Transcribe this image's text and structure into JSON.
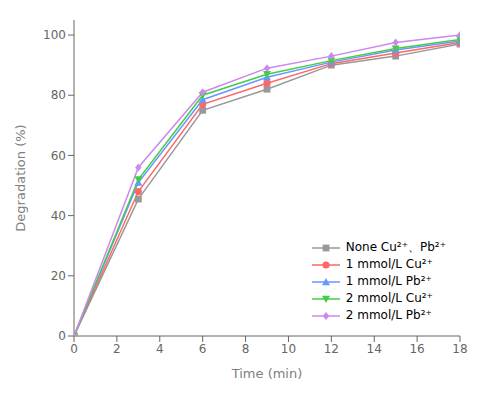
{
  "chart_data": {
    "type": "line",
    "xlabel": "Time (min)",
    "ylabel": "Degradation (%)",
    "x": [
      0,
      3,
      6,
      9,
      12,
      15,
      18
    ],
    "xlim": [
      0,
      18
    ],
    "ylim": [
      0,
      105
    ],
    "xticks": [
      0,
      2,
      4,
      6,
      8,
      10,
      12,
      14,
      16,
      18
    ],
    "yticks": [
      0,
      20,
      40,
      60,
      80,
      100
    ],
    "grid": false,
    "legend": "lower right",
    "series": [
      {
        "name": "None Cu²⁺、Pb²⁺",
        "color": "#999999",
        "marker": "square",
        "values": [
          0,
          45.5,
          75,
          82,
          90,
          93,
          97
        ]
      },
      {
        "name": "1 mmol/L Cu²⁺",
        "color": "#ff6666",
        "marker": "circle",
        "values": [
          0,
          48,
          77,
          84,
          90.5,
          94,
          97.5
        ]
      },
      {
        "name": "1 mmol/L Pb²⁺",
        "color": "#6699ff",
        "marker": "triangle-up",
        "values": [
          0,
          51,
          78.5,
          86,
          91,
          95,
          98
        ]
      },
      {
        "name": "2 mmol/L Cu²⁺",
        "color": "#44cc44",
        "marker": "triangle-down",
        "values": [
          0,
          52,
          80,
          87,
          91.5,
          95.5,
          98.5
        ]
      },
      {
        "name": "2 mmol/L Pb²⁺",
        "color": "#cc88ee",
        "marker": "diamond",
        "values": [
          0,
          56,
          81,
          89,
          93,
          97.5,
          100
        ]
      }
    ]
  }
}
